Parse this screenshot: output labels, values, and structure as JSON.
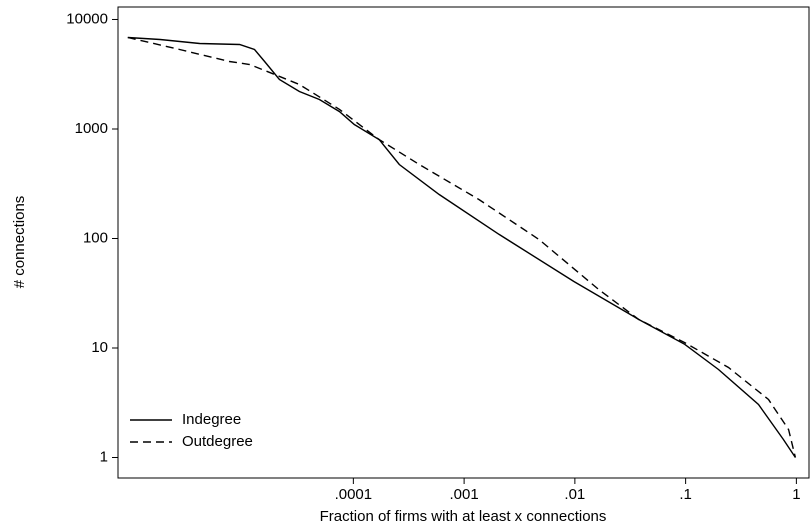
{
  "chart_data": {
    "type": "line",
    "xlabel": "Fraction of firms with at least x connections",
    "ylabel": "# connections",
    "xscale": "log",
    "yscale": "log",
    "xlim": [
      7.5e-07,
      1.3
    ],
    "ylim": [
      0.65,
      13000
    ],
    "xticks": [
      {
        "value": 0.0001,
        "label": ".0001"
      },
      {
        "value": 0.001,
        "label": ".001"
      },
      {
        "value": 0.01,
        "label": ".01"
      },
      {
        "value": 0.1,
        "label": ".1"
      },
      1
    ],
    "yticks": [
      1,
      10,
      100,
      1000,
      10000
    ],
    "legend": "lower left",
    "series": [
      {
        "name": "Indegree",
        "color": "#000000",
        "linestyle": "solid",
        "x": [
          9.2e-07,
          1.8e-06,
          4.1e-06,
          9.4e-06,
          1.28e-05,
          1.58e-05,
          2.15e-05,
          3.26e-05,
          4.94e-05,
          7.5e-05,
          0.000102,
          0.000171,
          0.00026,
          0.000596,
          0.00207,
          0.0098,
          0.0378,
          0.098,
          0.198,
          0.455,
          0.764,
          0.98
        ],
        "values": [
          6850,
          6570,
          6040,
          5910,
          5320,
          4130,
          2830,
          2200,
          1860,
          1440,
          1100,
          800,
          474,
          252,
          109,
          40.5,
          18.2,
          10.8,
          6.37,
          3.05,
          1.46,
          1
        ]
      },
      {
        "name": "Outdegree",
        "color": "#000000",
        "linestyle": "dashed",
        "x": [
          9.2e-07,
          2.7e-06,
          7.6e-06,
          1.16e-05,
          1.94e-05,
          3.26e-05,
          7.5e-05,
          0.000171,
          0.000394,
          0.00136,
          0.00474,
          0.0164,
          0.0378,
          0.098,
          0.244,
          0.56,
          0.85,
          0.98
        ],
        "values": [
          6850,
          5320,
          4130,
          3880,
          3150,
          2550,
          1510,
          800,
          474,
          227,
          98,
          34.2,
          18.2,
          11.2,
          6.64,
          3.39,
          1.8,
          1
        ]
      }
    ]
  }
}
